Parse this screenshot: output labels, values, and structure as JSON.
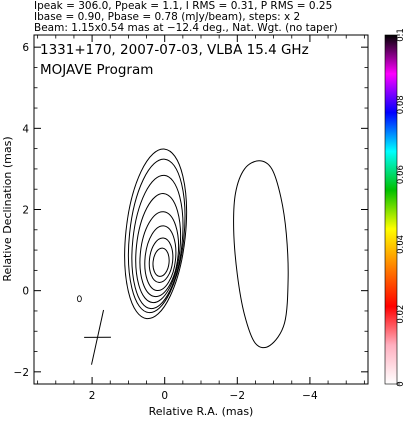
{
  "header": {
    "line1": "Ipeak = 306.0, Ppeak = 1.1, I RMS = 0.31, P RMS = 0.25",
    "line2": "Ibase = 0.90, Pbase = 0.78 (mJy/beam), steps: x 2",
    "line3": "Beam: 1.15x0.54 mas at −12.4 deg., Nat. Wgt. (no taper)"
  },
  "chart_data": {
    "type": "contour",
    "title": "1331+170, 2007-07-03, VLBA 15.4 GHz",
    "subtitle": "MOJAVE Program",
    "xlabel": "Relative R.A. (mas)",
    "ylabel": "Relative Declination (mas)",
    "xlim": [
      3.6,
      -5.6
    ],
    "ylim": [
      -2.3,
      6.3
    ],
    "x_axis_reversed": true,
    "xticks": [
      2,
      0,
      -2,
      -4
    ],
    "xtick_labels": [
      "2",
      "0",
      "−2",
      "−4"
    ],
    "yticks": [
      -2,
      0,
      2,
      4,
      6
    ],
    "ytick_labels": [
      "−2",
      "0",
      "2",
      "4",
      "6"
    ],
    "core_contours": [
      {
        "cx": 0.1,
        "cy": 0.7,
        "rx": 0.22,
        "ry": 0.35
      },
      {
        "cx": 0.1,
        "cy": 0.75,
        "rx": 0.32,
        "ry": 0.55
      },
      {
        "cx": 0.12,
        "cy": 0.8,
        "rx": 0.42,
        "ry": 0.8
      },
      {
        "cx": 0.15,
        "cy": 0.9,
        "rx": 0.52,
        "ry": 1.05
      },
      {
        "cx": 0.18,
        "cy": 1.05,
        "rx": 0.6,
        "ry": 1.35
      },
      {
        "cx": 0.2,
        "cy": 1.2,
        "rx": 0.68,
        "ry": 1.65
      },
      {
        "cx": 0.22,
        "cy": 1.35,
        "rx": 0.75,
        "ry": 1.9
      },
      {
        "cx": 0.25,
        "cy": 1.4,
        "rx": 0.82,
        "ry": 2.1
      }
    ],
    "jet_contour": {
      "points": [
        [
          -2.6,
          3.2
        ],
        [
          -2.95,
          3.0
        ],
        [
          -3.2,
          2.3
        ],
        [
          -3.35,
          1.4
        ],
        [
          -3.4,
          0.3
        ],
        [
          -3.3,
          -0.8
        ],
        [
          -2.9,
          -1.35
        ],
        [
          -2.5,
          -1.3
        ],
        [
          -2.2,
          -0.6
        ],
        [
          -2.0,
          0.4
        ],
        [
          -1.9,
          1.5
        ],
        [
          -1.95,
          2.4
        ],
        [
          -2.2,
          3.0
        ]
      ]
    },
    "beam": {
      "major": 1.15,
      "minor": 0.54,
      "pa": -12.4,
      "center": [
        1.85,
        -1.15
      ]
    },
    "small_contour": {
      "x": 2.35,
      "y": -0.2
    },
    "colorbar": {
      "min": 0,
      "max": 0.1,
      "ticks": [
        0,
        0.02,
        0.04,
        0.06,
        0.08,
        0.1
      ],
      "tick_labels": [
        "0",
        "0.02",
        "0.04",
        "0.06",
        "0.08",
        "0.1"
      ],
      "colors": [
        "#ffffff",
        "#ffb0c0",
        "#ff0000",
        "#ff7f00",
        "#ffff00",
        "#00c000",
        "#00ffff",
        "#0000ff",
        "#ff00ff",
        "#000000"
      ]
    }
  }
}
